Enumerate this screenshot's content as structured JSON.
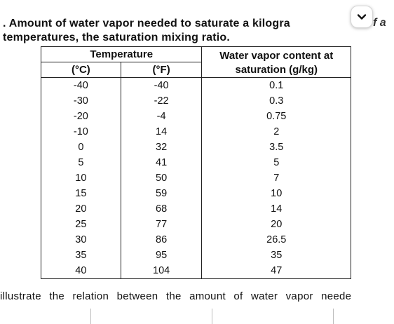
{
  "caption": {
    "line1": ". Amount of water vapor needed to saturate a kilogra",
    "line2": "temperatures, the saturation mixing ratio.",
    "cut_right": "f a"
  },
  "scroll_button": {
    "icon": "chevron-down-icon"
  },
  "table": {
    "temperature_header": "Temperature",
    "water_header_line1": "Water vapor content at",
    "water_header_line2": "saturation (g/kg)",
    "unit_c": "(°C)",
    "unit_f": "(°F)",
    "rows": [
      {
        "c": "-40",
        "f": "-40",
        "w": "0.1"
      },
      {
        "c": "-30",
        "f": "-22",
        "w": "0.3"
      },
      {
        "c": "-20",
        "f": "-4",
        "w": "0.75"
      },
      {
        "c": "-10",
        "f": "14",
        "w": "2"
      },
      {
        "c": "0",
        "f": "32",
        "w": "3.5"
      },
      {
        "c": "5",
        "f": "41",
        "w": "5"
      },
      {
        "c": "10",
        "f": "50",
        "w": "7"
      },
      {
        "c": "15",
        "f": "59",
        "w": "10"
      },
      {
        "c": "20",
        "f": "68",
        "w": "14"
      },
      {
        "c": "25",
        "f": "77",
        "w": "20"
      },
      {
        "c": "30",
        "f": "86",
        "w": "26.5"
      },
      {
        "c": "35",
        "f": "95",
        "w": "35"
      },
      {
        "c": "40",
        "f": "104",
        "w": "47"
      }
    ]
  },
  "bottom_text": "illustrate the relation between the amount of water vapor neede"
}
